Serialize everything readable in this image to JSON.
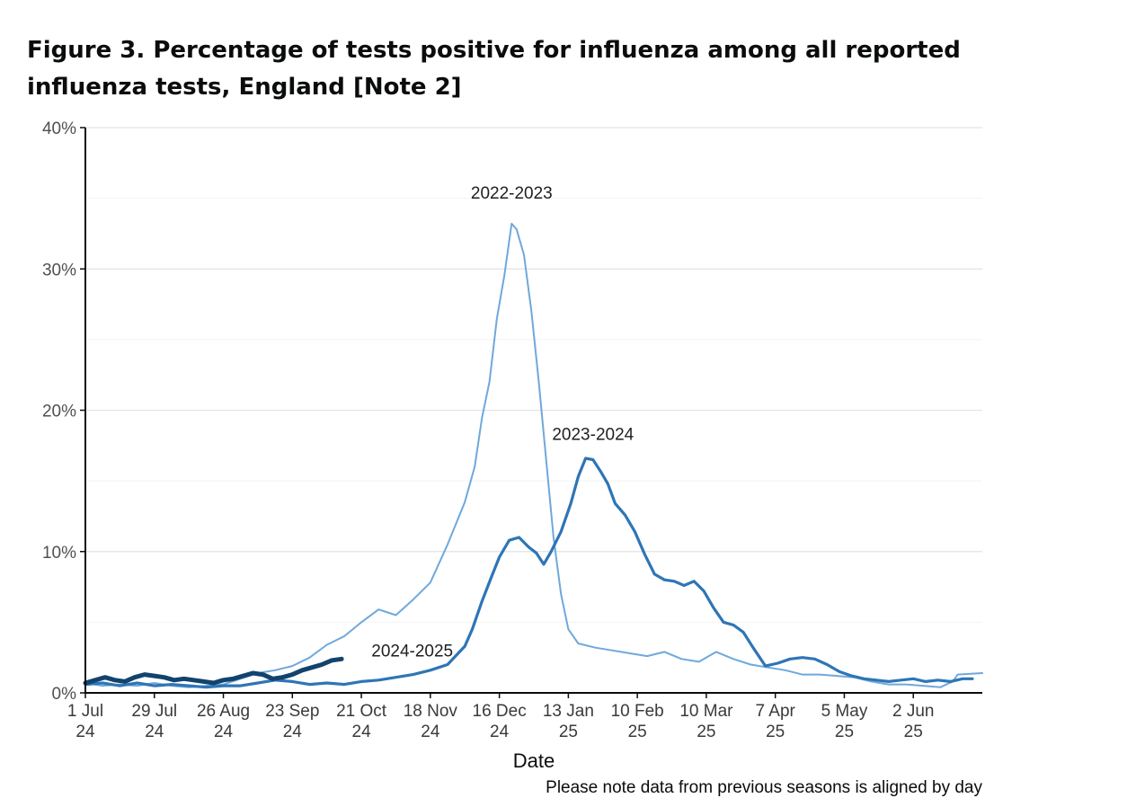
{
  "chart_data": {
    "type": "line",
    "title": "Figure 3. Percentage of tests positive for influenza among all reported influenza tests, England [Note 2]",
    "xlabel": "Date",
    "ylabel": "",
    "note": "Please note data from previous seasons is aligned by day",
    "ylim": [
      0,
      40
    ],
    "xlim": [
      0,
      364
    ],
    "y_ticks": [
      {
        "value": 0,
        "label": "0%"
      },
      {
        "value": 10,
        "label": "10%"
      },
      {
        "value": 20,
        "label": "20%"
      },
      {
        "value": 30,
        "label": "30%"
      },
      {
        "value": 40,
        "label": "40%"
      }
    ],
    "minor_gridlines": [
      5,
      15,
      25,
      35
    ],
    "x_ticks": [
      {
        "day": 0,
        "line1": "1 Jul",
        "line2": "24"
      },
      {
        "day": 28,
        "line1": "29 Jul",
        "line2": "24"
      },
      {
        "day": 56,
        "line1": "26 Aug",
        "line2": "24"
      },
      {
        "day": 84,
        "line1": "23 Sep",
        "line2": "24"
      },
      {
        "day": 112,
        "line1": "21 Oct",
        "line2": "24"
      },
      {
        "day": 140,
        "line1": "18 Nov",
        "line2": "24"
      },
      {
        "day": 168,
        "line1": "16 Dec",
        "line2": "24"
      },
      {
        "day": 196,
        "line1": "13 Jan",
        "line2": "25"
      },
      {
        "day": 224,
        "line1": "10 Feb",
        "line2": "25"
      },
      {
        "day": 252,
        "line1": "10 Mar",
        "line2": "25"
      },
      {
        "day": 280,
        "line1": "7 Apr",
        "line2": "25"
      },
      {
        "day": 308,
        "line1": "5 May",
        "line2": "25"
      },
      {
        "day": 336,
        "line1": "2 Jun",
        "line2": "25"
      }
    ],
    "series": [
      {
        "name": "2022-2023",
        "color": "#6fa8dc",
        "points": [
          [
            0,
            0.7
          ],
          [
            7,
            0.5
          ],
          [
            14,
            0.6
          ],
          [
            21,
            0.5
          ],
          [
            28,
            0.7
          ],
          [
            35,
            0.5
          ],
          [
            42,
            0.4
          ],
          [
            49,
            0.5
          ],
          [
            56,
            0.6
          ],
          [
            63,
            1.0
          ],
          [
            70,
            1.4
          ],
          [
            77,
            1.6
          ],
          [
            84,
            1.9
          ],
          [
            91,
            2.5
          ],
          [
            98,
            3.4
          ],
          [
            105,
            4.0
          ],
          [
            112,
            5.0
          ],
          [
            119,
            5.9
          ],
          [
            126,
            5.5
          ],
          [
            133,
            6.6
          ],
          [
            140,
            7.8
          ],
          [
            147,
            10.5
          ],
          [
            154,
            13.5
          ],
          [
            158,
            16.0
          ],
          [
            161,
            19.5
          ],
          [
            164,
            22.0
          ],
          [
            167,
            26.5
          ],
          [
            170,
            29.5
          ],
          [
            173,
            33.2
          ],
          [
            175,
            32.8
          ],
          [
            178,
            31.0
          ],
          [
            181,
            27.0
          ],
          [
            184,
            22.0
          ],
          [
            187,
            16.5
          ],
          [
            190,
            11.0
          ],
          [
            193,
            7.0
          ],
          [
            196,
            4.5
          ],
          [
            200,
            3.5
          ],
          [
            207,
            3.2
          ],
          [
            214,
            3.0
          ],
          [
            221,
            2.8
          ],
          [
            228,
            2.6
          ],
          [
            235,
            2.9
          ],
          [
            242,
            2.4
          ],
          [
            249,
            2.2
          ],
          [
            256,
            2.9
          ],
          [
            263,
            2.4
          ],
          [
            270,
            2.0
          ],
          [
            277,
            1.8
          ],
          [
            284,
            1.6
          ],
          [
            291,
            1.3
          ],
          [
            298,
            1.3
          ],
          [
            305,
            1.2
          ],
          [
            312,
            1.1
          ],
          [
            319,
            0.8
          ],
          [
            326,
            0.6
          ],
          [
            333,
            0.6
          ],
          [
            340,
            0.5
          ],
          [
            347,
            0.4
          ],
          [
            352,
            0.8
          ],
          [
            354,
            1.3
          ],
          [
            364,
            1.4
          ]
        ]
      },
      {
        "name": "2023-2024",
        "color": "#2e75b6",
        "points": [
          [
            0,
            0.6
          ],
          [
            7,
            0.7
          ],
          [
            14,
            0.5
          ],
          [
            21,
            0.7
          ],
          [
            28,
            0.5
          ],
          [
            35,
            0.6
          ],
          [
            42,
            0.5
          ],
          [
            49,
            0.4
          ],
          [
            56,
            0.5
          ],
          [
            63,
            0.5
          ],
          [
            70,
            0.7
          ],
          [
            77,
            0.9
          ],
          [
            84,
            0.8
          ],
          [
            91,
            0.6
          ],
          [
            98,
            0.7
          ],
          [
            105,
            0.6
          ],
          [
            112,
            0.8
          ],
          [
            119,
            0.9
          ],
          [
            126,
            1.1
          ],
          [
            133,
            1.3
          ],
          [
            140,
            1.6
          ],
          [
            147,
            2.0
          ],
          [
            154,
            3.3
          ],
          [
            157,
            4.5
          ],
          [
            161,
            6.5
          ],
          [
            165,
            8.3
          ],
          [
            168,
            9.6
          ],
          [
            172,
            10.8
          ],
          [
            176,
            11.0
          ],
          [
            180,
            10.3
          ],
          [
            183,
            9.9
          ],
          [
            186,
            9.1
          ],
          [
            189,
            10.0
          ],
          [
            193,
            11.4
          ],
          [
            197,
            13.4
          ],
          [
            200,
            15.3
          ],
          [
            203,
            16.6
          ],
          [
            206,
            16.5
          ],
          [
            209,
            15.7
          ],
          [
            212,
            14.8
          ],
          [
            215,
            13.4
          ],
          [
            219,
            12.6
          ],
          [
            223,
            11.4
          ],
          [
            227,
            9.8
          ],
          [
            231,
            8.4
          ],
          [
            235,
            8.0
          ],
          [
            239,
            7.9
          ],
          [
            243,
            7.6
          ],
          [
            247,
            7.9
          ],
          [
            251,
            7.2
          ],
          [
            255,
            6.0
          ],
          [
            259,
            5.0
          ],
          [
            263,
            4.8
          ],
          [
            267,
            4.3
          ],
          [
            271,
            3.2
          ],
          [
            276,
            1.9
          ],
          [
            281,
            2.1
          ],
          [
            286,
            2.4
          ],
          [
            291,
            2.5
          ],
          [
            296,
            2.4
          ],
          [
            301,
            2.0
          ],
          [
            306,
            1.5
          ],
          [
            311,
            1.2
          ],
          [
            316,
            1.0
          ],
          [
            321,
            0.9
          ],
          [
            326,
            0.8
          ],
          [
            331,
            0.9
          ],
          [
            336,
            1.0
          ],
          [
            341,
            0.8
          ],
          [
            346,
            0.9
          ],
          [
            351,
            0.8
          ],
          [
            356,
            1.0
          ],
          [
            360,
            1.0
          ]
        ]
      },
      {
        "name": "2024-2025",
        "color": "#12436d",
        "points": [
          [
            0,
            0.7
          ],
          [
            4,
            0.9
          ],
          [
            8,
            1.1
          ],
          [
            12,
            0.9
          ],
          [
            16,
            0.8
          ],
          [
            20,
            1.1
          ],
          [
            24,
            1.3
          ],
          [
            28,
            1.2
          ],
          [
            32,
            1.1
          ],
          [
            36,
            0.9
          ],
          [
            40,
            1.0
          ],
          [
            44,
            0.9
          ],
          [
            48,
            0.8
          ],
          [
            52,
            0.7
          ],
          [
            56,
            0.9
          ],
          [
            60,
            1.0
          ],
          [
            64,
            1.2
          ],
          [
            68,
            1.4
          ],
          [
            72,
            1.3
          ],
          [
            76,
            1.0
          ],
          [
            80,
            1.1
          ],
          [
            84,
            1.3
          ],
          [
            88,
            1.6
          ],
          [
            92,
            1.8
          ],
          [
            96,
            2.0
          ],
          [
            100,
            2.3
          ],
          [
            104,
            2.4
          ]
        ]
      }
    ],
    "series_labels": [
      {
        "series": "2022-2023",
        "text": "2022-2023",
        "day": 173,
        "value": 34.8
      },
      {
        "series": "2023-2024",
        "text": "2023-2024",
        "day": 206,
        "value": 17.7
      },
      {
        "series": "2024-2025",
        "text": "2024-2025",
        "day": 119,
        "value": 2.4
      }
    ]
  }
}
